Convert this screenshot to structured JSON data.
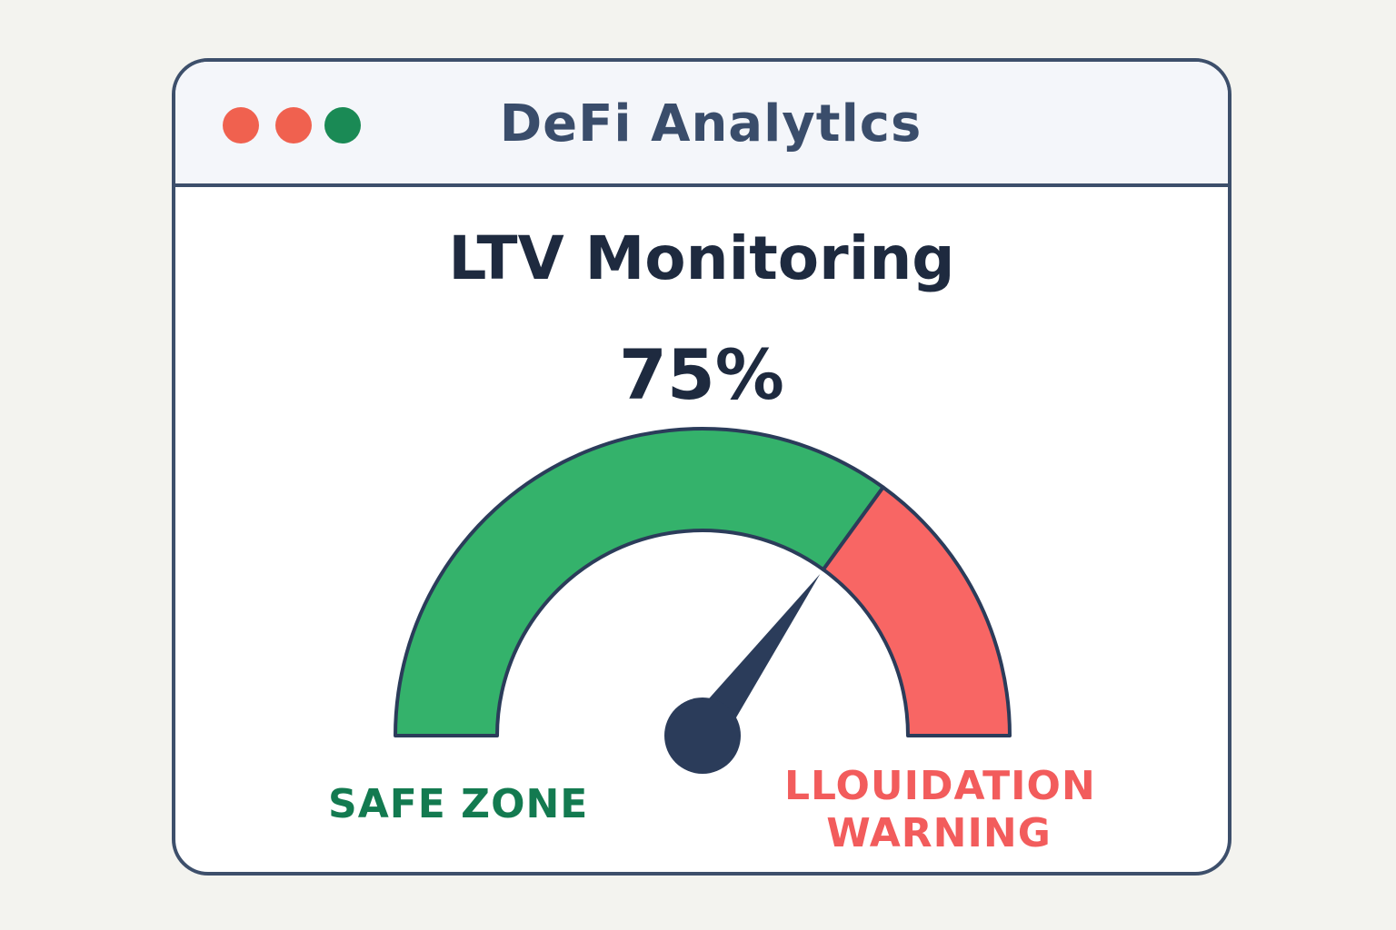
{
  "window": {
    "title": "DeFi Analytlcs",
    "controls": [
      {
        "name": "close",
        "color": "#f0614f"
      },
      {
        "name": "minimize",
        "color": "#f0614f"
      },
      {
        "name": "maximize",
        "color": "#1a8a55"
      }
    ]
  },
  "panel": {
    "heading": "LTV Monitoring",
    "ltv_value": "75%",
    "gauge": {
      "safe_color": "#34b26b",
      "warning_color": "#f86664",
      "needle_color": "#2b3c5a",
      "safe_zone_fraction": 0.7
    },
    "safe_label": "SAFE ZONE",
    "warning_label_line1": "LLOUIDATION",
    "warning_label_line2": "WARNING"
  }
}
